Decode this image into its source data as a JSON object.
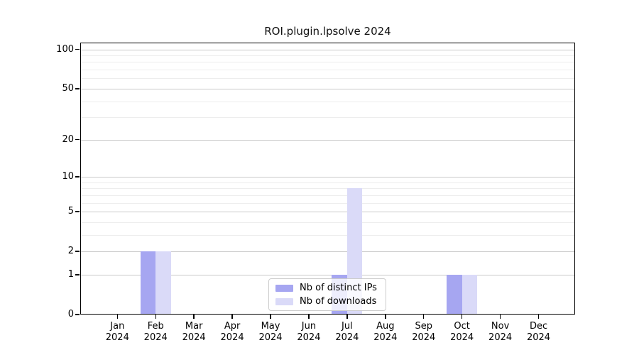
{
  "title": "ROI.plugin.lpsolve 2024",
  "chart_data": {
    "type": "bar",
    "title": "ROI.plugin.lpsolve 2024",
    "categories": [
      "Jan 2024",
      "Feb 2024",
      "Mar 2024",
      "Apr 2024",
      "May 2024",
      "Jun 2024",
      "Jul 2024",
      "Aug 2024",
      "Sep 2024",
      "Oct 2024",
      "Nov 2024",
      "Dec 2024"
    ],
    "series": [
      {
        "name": "Nb of distinct IPs",
        "color": "#a6a6f1",
        "values": [
          0,
          2,
          0,
          0,
          0,
          0,
          1,
          0,
          0,
          1,
          0,
          0
        ]
      },
      {
        "name": "Nb of downloads",
        "color": "#dadaf8",
        "values": [
          0,
          2,
          0,
          0,
          0,
          0,
          8,
          0,
          0,
          1,
          0,
          0
        ]
      }
    ],
    "yscale": "log1p",
    "y_ticks": [
      0,
      1,
      2,
      5,
      10,
      20,
      50,
      100
    ],
    "y_minor_gridlines": [
      3,
      4,
      6,
      7,
      8,
      9,
      30,
      40,
      60,
      70,
      80,
      90
    ],
    "ylim": [
      0,
      113
    ],
    "xlabel": "",
    "ylabel": "",
    "grid": true,
    "legend_position": "lower center"
  },
  "colors": {
    "major_grid": "#c9c9c9",
    "minor_grid": "#ededed",
    "axis": "#000000",
    "legend_border": "#cccccc"
  }
}
